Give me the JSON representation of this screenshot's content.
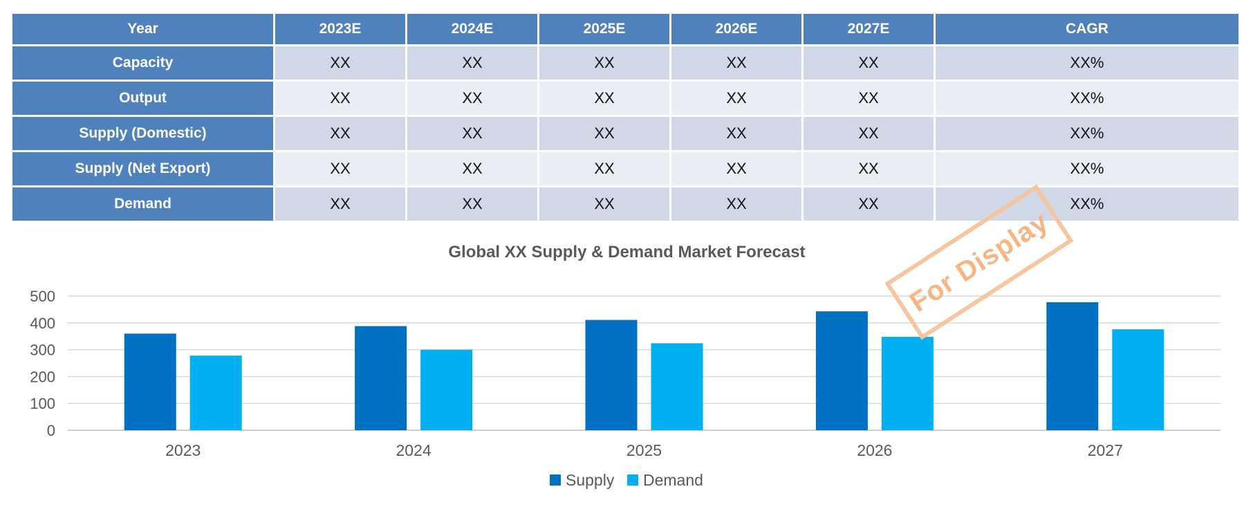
{
  "table": {
    "headers": [
      "Year",
      "2023E",
      "2024E",
      "2025E",
      "2026E",
      "2027E",
      "CAGR"
    ],
    "rows": [
      {
        "label": "Capacity",
        "values": [
          "XX",
          "XX",
          "XX",
          "XX",
          "XX",
          "XX%"
        ]
      },
      {
        "label": "Output",
        "values": [
          "XX",
          "XX",
          "XX",
          "XX",
          "XX",
          "XX%"
        ]
      },
      {
        "label": "Supply (Domestic)",
        "values": [
          "XX",
          "XX",
          "XX",
          "XX",
          "XX",
          "XX%"
        ]
      },
      {
        "label": "Supply (Net Export)",
        "values": [
          "XX",
          "XX",
          "XX",
          "XX",
          "XX",
          "XX%"
        ]
      },
      {
        "label": "Demand",
        "values": [
          "XX",
          "XX",
          "XX",
          "XX",
          "XX",
          "XX%"
        ]
      }
    ]
  },
  "chart_data": {
    "type": "bar",
    "title": "Global XX Supply & Demand Market Forecast",
    "categories": [
      "2023",
      "2024",
      "2025",
      "2026",
      "2027"
    ],
    "series": [
      {
        "name": "Supply",
        "values": [
          360,
          388,
          411,
          443,
          477
        ],
        "color": "#0070c0"
      },
      {
        "name": "Demand",
        "values": [
          278,
          300,
          324,
          348,
          376
        ],
        "color": "#00b0f0"
      }
    ],
    "yticks": [
      0,
      100,
      200,
      300,
      400,
      500
    ],
    "ylim": [
      0,
      500
    ],
    "xlabel": "",
    "ylabel": "",
    "grid": true,
    "legend": "bottom-center"
  },
  "watermark": {
    "text": "For Display"
  },
  "colors": {
    "header": "#4f81bd",
    "row_odd": "#d0d8e8",
    "row_even": "#e9edf4",
    "grid": "#d9d9d9",
    "axis_text": "#595959"
  }
}
